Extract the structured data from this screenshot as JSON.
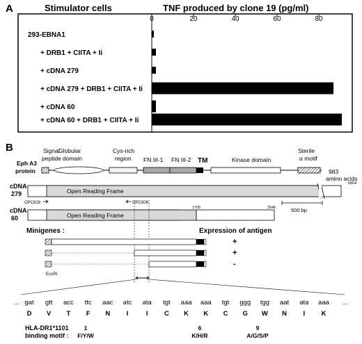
{
  "panelA": {
    "label": "A",
    "stimulator_header": "Stimulator cells",
    "tnf_header": "TNF produced by clone 19 (pg/ml)",
    "chart_data": {
      "type": "bar",
      "orientation": "horizontal",
      "categories": [
        "293-EBNA1",
        "+ DRB1 + CIITA + Ii",
        "+ cDNA 279",
        "+ cDNA 279 + DRB1 + CIITA + Ii",
        "+ cDNA 60",
        "+ cDNA 60 + DRB1 + CIITA + Ii"
      ],
      "values": [
        1,
        2,
        2,
        87,
        2,
        91
      ],
      "xlim": [
        0,
        95
      ],
      "ticks": [
        "0",
        "20",
        "40",
        "60",
        "80"
      ],
      "tick_values": [
        0,
        20,
        40,
        60,
        80
      ],
      "grid": false
    }
  },
  "panelB": {
    "label": "B",
    "protein_label": [
      "Eph A3",
      "protein"
    ],
    "domains": {
      "signal": [
        "Signal",
        "peptide"
      ],
      "globular": [
        "Globular",
        "domain"
      ],
      "cys": [
        "Cys-rich",
        "region"
      ],
      "fn1": "FN III-1",
      "fn2": "FN III-2",
      "tm": "TM",
      "kinase": "Kinase domain",
      "sterile": [
        "Sterile",
        "α motif"
      ],
      "length": [
        "983",
        "amino acids"
      ]
    },
    "cdna279": {
      "label": [
        "cDNA",
        "279"
      ],
      "orf": "Open Reading Frame",
      "end": "5804",
      "primer_left": "OPC818",
      "primer_right": "OPC806"
    },
    "scale_bar": "500 bp",
    "cdna60": {
      "label": [
        "cDNA",
        "60"
      ],
      "orf": "Open Reading Frame",
      "pos1": "1705",
      "pos2": "2546"
    },
    "minigenes_title": "Minigenes :",
    "expression_title": "Expression of antigen",
    "minigene_results": [
      "+",
      "+",
      "-"
    ],
    "ecori": "EcoRI",
    "codons": [
      "gat",
      "gtt",
      "acc",
      "ttc",
      "aac",
      "atc",
      "ata",
      "tgt",
      "aaa",
      "aaa",
      "tgt",
      "ggg",
      "tgg",
      "aat",
      "ata",
      "aaa"
    ],
    "aminoacids": [
      "D",
      "V",
      "T",
      "F",
      "N",
      "I",
      "I",
      "C",
      "K",
      "K",
      "C",
      "G",
      "W",
      "N",
      "I",
      "K"
    ],
    "ellipsis": "...",
    "motif_label": [
      "HLA-DR1*1101",
      "binding motif :"
    ],
    "motif": [
      {
        "pos": "1",
        "aa": "F/Y/W"
      },
      {
        "pos": "6",
        "aa": "K/H/R"
      },
      {
        "pos": "9",
        "aa": "A/G/S/P"
      }
    ]
  }
}
